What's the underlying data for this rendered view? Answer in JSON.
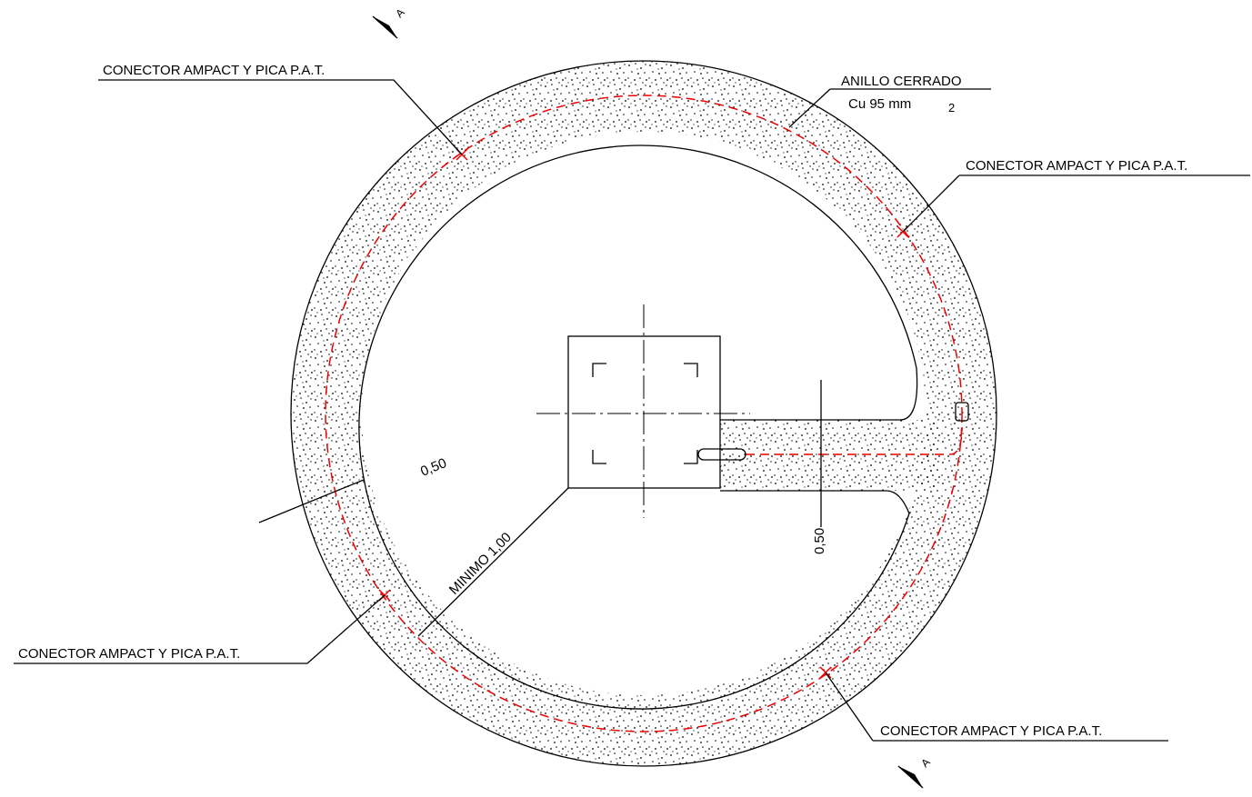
{
  "labels": [
    {
      "text": "CONECTOR AMPACT Y PICA P.A.T."
    },
    {
      "text": "CONECTOR AMPACT Y PICA P.A.T."
    },
    {
      "text": "CONECTOR AMPACT Y PICA P.A.T."
    },
    {
      "text": "CONECTOR AMPACT Y PICA P.A.T."
    }
  ],
  "ring": {
    "title": "ANILLO CERRADO",
    "conductor": "Cu 95 mm",
    "exponent": "2"
  },
  "dimensions": {
    "ring_width": "0,50",
    "minimum": "MINIMO 1,00",
    "trench_width": "0,50"
  },
  "section_marks": [
    "A",
    "A"
  ]
}
